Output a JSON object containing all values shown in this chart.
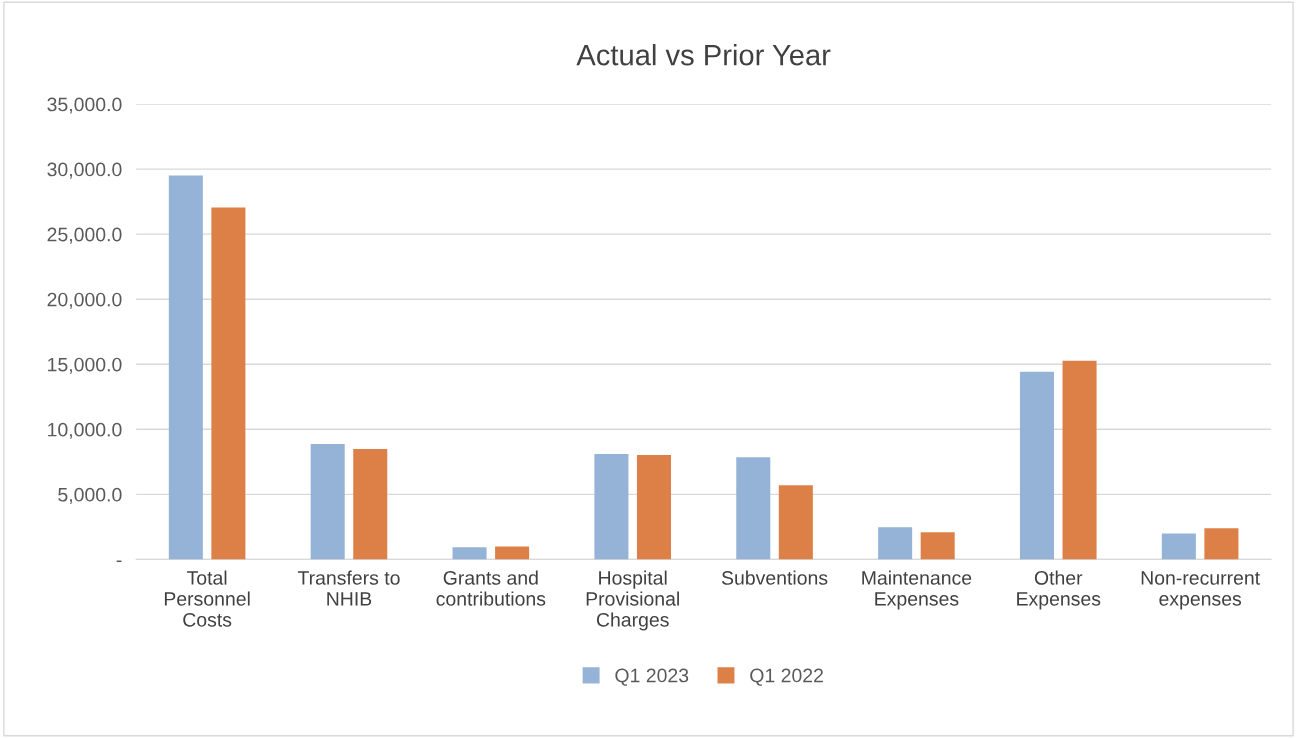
{
  "chart_data": {
    "type": "bar",
    "title": "Actual vs Prior Year",
    "categories": [
      "Total\nPersonnel\nCosts",
      "Transfers to\nNHIB",
      "Grants and\ncontributions",
      "Hospital\nProvisional\nCharges",
      "Subventions",
      "Maintenance\nExpenses",
      "Other\nExpenses",
      "Non-recurrent\nexpenses"
    ],
    "series": [
      {
        "name": "Q1 2023",
        "color": "#95b3d7",
        "values": [
          29500,
          8870,
          930,
          8100,
          7860,
          2470,
          14420,
          2000
        ]
      },
      {
        "name": "Q1 2022",
        "color": "#dd8047",
        "values": [
          27050,
          8480,
          1000,
          8020,
          5700,
          2080,
          15270,
          2390
        ]
      }
    ],
    "ylim": [
      0,
      35000
    ],
    "yticks": [
      {
        "value": 0,
        "label": "-"
      },
      {
        "value": 5000,
        "label": "5,000.0"
      },
      {
        "value": 10000,
        "label": "10,000.0"
      },
      {
        "value": 15000,
        "label": "15,000.0"
      },
      {
        "value": 20000,
        "label": "20,000.0"
      },
      {
        "value": 25000,
        "label": "25,000.0"
      },
      {
        "value": 30000,
        "label": "30,000.0"
      },
      {
        "value": 35000,
        "label": "35,000.0"
      }
    ],
    "grid": "y",
    "legend": "bottom"
  }
}
